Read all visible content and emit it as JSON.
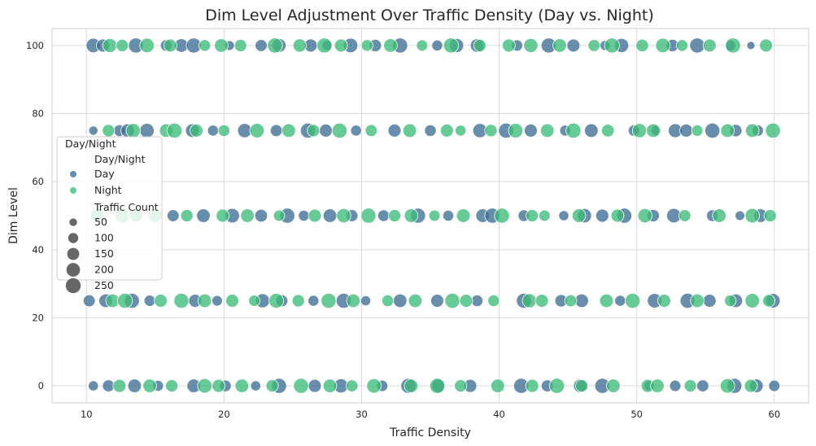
{
  "chart_data": {
    "type": "scatter",
    "title": "Dim Level Adjustment Over Traffic Density (Day vs. Night)",
    "xlabel": "Traffic Density",
    "ylabel": "Dim Level",
    "xlim": [
      7.5,
      62.5
    ],
    "ylim": [
      -5,
      105
    ],
    "xticks": [
      10,
      20,
      30,
      40,
      50,
      60
    ],
    "yticks": [
      0,
      20,
      40,
      60,
      80,
      100
    ],
    "grid": true,
    "legend_placement": "center-left",
    "hue": {
      "title": "Day/Night",
      "entries": [
        {
          "name": "Day",
          "color": "#3d6e94"
        },
        {
          "name": "Night",
          "color": "#3dbb79"
        }
      ]
    },
    "size": {
      "title": "Traffic Count",
      "entries": [
        50,
        100,
        150,
        200,
        250
      ]
    },
    "series": [
      {
        "name": "Day",
        "color": "#3d6e94",
        "points": [
          [
            10.5,
            100,
            230
          ],
          [
            11.2,
            100,
            180
          ],
          [
            13.6,
            100,
            250
          ],
          [
            15.8,
            100,
            140
          ],
          [
            16.9,
            100,
            200
          ],
          [
            17.8,
            100,
            250
          ],
          [
            20.4,
            100,
            90
          ],
          [
            22.7,
            100,
            150
          ],
          [
            24.0,
            100,
            210
          ],
          [
            26.3,
            100,
            180
          ],
          [
            27.5,
            100,
            110
          ],
          [
            29.2,
            100,
            230
          ],
          [
            31.0,
            100,
            160
          ],
          [
            32.8,
            100,
            250
          ],
          [
            35.5,
            100,
            120
          ],
          [
            36.9,
            100,
            220
          ],
          [
            38.4,
            100,
            200
          ],
          [
            41.3,
            100,
            130
          ],
          [
            43.6,
            100,
            250
          ],
          [
            45.4,
            100,
            180
          ],
          [
            47.7,
            100,
            100
          ],
          [
            48.9,
            100,
            220
          ],
          [
            52.6,
            100,
            160
          ],
          [
            54.4,
            100,
            250
          ],
          [
            56.8,
            100,
            120
          ],
          [
            58.3,
            100,
            60
          ],
          [
            10.5,
            75,
            80
          ],
          [
            12.4,
            75,
            140
          ],
          [
            13.0,
            75,
            200
          ],
          [
            14.4,
            75,
            230
          ],
          [
            17.7,
            75,
            200
          ],
          [
            19.2,
            75,
            120
          ],
          [
            21.5,
            75,
            220
          ],
          [
            23.8,
            75,
            150
          ],
          [
            26.1,
            75,
            250
          ],
          [
            27.4,
            75,
            180
          ],
          [
            29.6,
            75,
            120
          ],
          [
            32.4,
            75,
            180
          ],
          [
            35.0,
            75,
            140
          ],
          [
            38.6,
            75,
            220
          ],
          [
            40.5,
            75,
            250
          ],
          [
            42.3,
            75,
            180
          ],
          [
            44.8,
            75,
            120
          ],
          [
            46.7,
            75,
            200
          ],
          [
            49.8,
            75,
            130
          ],
          [
            51.4,
            75,
            100
          ],
          [
            52.8,
            75,
            210
          ],
          [
            53.6,
            75,
            180
          ],
          [
            55.5,
            75,
            250
          ],
          [
            57.2,
            75,
            160
          ],
          [
            58.8,
            75,
            130
          ],
          [
            16.3,
            50,
            150
          ],
          [
            18.5,
            50,
            200
          ],
          [
            20.6,
            50,
            230
          ],
          [
            22.7,
            50,
            170
          ],
          [
            24.6,
            50,
            250
          ],
          [
            25.8,
            50,
            120
          ],
          [
            27.7,
            50,
            200
          ],
          [
            29.3,
            50,
            150
          ],
          [
            31.6,
            50,
            140
          ],
          [
            34.1,
            50,
            250
          ],
          [
            36.3,
            50,
            120
          ],
          [
            38.8,
            50,
            200
          ],
          [
            39.5,
            50,
            250
          ],
          [
            41.8,
            50,
            140
          ],
          [
            44.7,
            50,
            100
          ],
          [
            46.2,
            50,
            220
          ],
          [
            47.5,
            50,
            180
          ],
          [
            49.1,
            50,
            250
          ],
          [
            51.2,
            50,
            160
          ],
          [
            52.7,
            50,
            230
          ],
          [
            55.5,
            50,
            140
          ],
          [
            57.5,
            50,
            90
          ],
          [
            59.0,
            50,
            200
          ],
          [
            10.2,
            25,
            150
          ],
          [
            11.4,
            25,
            200
          ],
          [
            13.3,
            25,
            250
          ],
          [
            14.6,
            25,
            130
          ],
          [
            17.9,
            25,
            180
          ],
          [
            19.5,
            25,
            110
          ],
          [
            22.8,
            25,
            220
          ],
          [
            24.2,
            25,
            150
          ],
          [
            26.5,
            25,
            120
          ],
          [
            28.7,
            25,
            250
          ],
          [
            30.3,
            25,
            100
          ],
          [
            32.8,
            25,
            200
          ],
          [
            35.5,
            25,
            180
          ],
          [
            38.4,
            25,
            140
          ],
          [
            41.8,
            25,
            250
          ],
          [
            44.5,
            25,
            160
          ],
          [
            46.0,
            25,
            200
          ],
          [
            48.8,
            25,
            120
          ],
          [
            51.3,
            25,
            230
          ],
          [
            53.7,
            25,
            250
          ],
          [
            55.3,
            25,
            180
          ],
          [
            57.2,
            25,
            200
          ],
          [
            59.9,
            25,
            230
          ],
          [
            10.5,
            0,
            100
          ],
          [
            11.6,
            0,
            150
          ],
          [
            13.5,
            0,
            200
          ],
          [
            15.2,
            0,
            120
          ],
          [
            17.8,
            0,
            200
          ],
          [
            20.1,
            0,
            140
          ],
          [
            22.3,
            0,
            100
          ],
          [
            24.0,
            0,
            250
          ],
          [
            26.6,
            0,
            180
          ],
          [
            28.5,
            0,
            220
          ],
          [
            31.5,
            0,
            130
          ],
          [
            33.4,
            0,
            250
          ],
          [
            35.6,
            0,
            200
          ],
          [
            37.9,
            0,
            180
          ],
          [
            41.6,
            0,
            250
          ],
          [
            43.5,
            0,
            150
          ],
          [
            45.9,
            0,
            200
          ],
          [
            47.5,
            0,
            250
          ],
          [
            50.9,
            0,
            100
          ],
          [
            52.8,
            0,
            130
          ],
          [
            54.8,
            0,
            150
          ],
          [
            57.1,
            0,
            250
          ],
          [
            58.7,
            0,
            200
          ],
          [
            60.0,
            0,
            130
          ]
        ]
      },
      {
        "name": "Night",
        "color": "#3dbb79",
        "points": [
          [
            11.7,
            100,
            220
          ],
          [
            12.6,
            100,
            160
          ],
          [
            14.4,
            100,
            230
          ],
          [
            16.1,
            100,
            180
          ],
          [
            18.6,
            100,
            140
          ],
          [
            19.8,
            100,
            200
          ],
          [
            21.2,
            100,
            160
          ],
          [
            23.7,
            100,
            250
          ],
          [
            25.5,
            100,
            190
          ],
          [
            27.3,
            100,
            250
          ],
          [
            28.5,
            100,
            180
          ],
          [
            30.4,
            100,
            140
          ],
          [
            32.1,
            100,
            200
          ],
          [
            34.4,
            100,
            130
          ],
          [
            36.5,
            100,
            250
          ],
          [
            38.6,
            100,
            160
          ],
          [
            40.7,
            100,
            180
          ],
          [
            42.3,
            100,
            220
          ],
          [
            44.4,
            100,
            200
          ],
          [
            46.9,
            100,
            150
          ],
          [
            48.2,
            100,
            250
          ],
          [
            50.4,
            100,
            170
          ],
          [
            51.9,
            100,
            230
          ],
          [
            53.3,
            100,
            140
          ],
          [
            55.3,
            100,
            180
          ],
          [
            57.0,
            100,
            250
          ],
          [
            59.4,
            100,
            180
          ],
          [
            11.6,
            75,
            160
          ],
          [
            13.4,
            75,
            220
          ],
          [
            15.8,
            75,
            200
          ],
          [
            16.4,
            75,
            250
          ],
          [
            18.0,
            75,
            180
          ],
          [
            20.0,
            75,
            140
          ],
          [
            22.4,
            75,
            230
          ],
          [
            24.7,
            75,
            200
          ],
          [
            26.5,
            75,
            160
          ],
          [
            28.4,
            75,
            250
          ],
          [
            30.7,
            75,
            150
          ],
          [
            33.5,
            75,
            200
          ],
          [
            36.2,
            75,
            180
          ],
          [
            37.2,
            75,
            120
          ],
          [
            39.4,
            75,
            160
          ],
          [
            41.2,
            75,
            230
          ],
          [
            43.5,
            75,
            200
          ],
          [
            45.4,
            75,
            250
          ],
          [
            47.9,
            75,
            170
          ],
          [
            50.2,
            75,
            220
          ],
          [
            51.2,
            75,
            200
          ],
          [
            54.4,
            75,
            130
          ],
          [
            56.6,
            75,
            200
          ],
          [
            58.4,
            75,
            200
          ],
          [
            59.9,
            75,
            250
          ],
          [
            10.8,
            50,
            200
          ],
          [
            12.6,
            50,
            240
          ],
          [
            13.6,
            50,
            180
          ],
          [
            15.0,
            50,
            200
          ],
          [
            17.3,
            50,
            160
          ],
          [
            19.9,
            50,
            180
          ],
          [
            21.7,
            50,
            200
          ],
          [
            24.0,
            50,
            130
          ],
          [
            26.6,
            50,
            180
          ],
          [
            28.7,
            50,
            220
          ],
          [
            30.5,
            50,
            250
          ],
          [
            32.4,
            50,
            160
          ],
          [
            33.6,
            50,
            200
          ],
          [
            35.3,
            50,
            130
          ],
          [
            37.4,
            50,
            200
          ],
          [
            40.2,
            50,
            250
          ],
          [
            42.4,
            50,
            160
          ],
          [
            43.3,
            50,
            130
          ],
          [
            45.8,
            50,
            200
          ],
          [
            48.6,
            50,
            180
          ],
          [
            50.6,
            50,
            220
          ],
          [
            53.5,
            50,
            150
          ],
          [
            56.0,
            50,
            200
          ],
          [
            58.4,
            50,
            230
          ],
          [
            59.7,
            50,
            160
          ],
          [
            11.9,
            25,
            200
          ],
          [
            12.8,
            25,
            250
          ],
          [
            15.4,
            25,
            180
          ],
          [
            16.9,
            25,
            250
          ],
          [
            18.6,
            25,
            200
          ],
          [
            20.6,
            25,
            180
          ],
          [
            22.2,
            25,
            130
          ],
          [
            23.8,
            25,
            240
          ],
          [
            25.4,
            25,
            160
          ],
          [
            27.6,
            25,
            250
          ],
          [
            29.4,
            25,
            200
          ],
          [
            31.9,
            25,
            140
          ],
          [
            33.9,
            25,
            200
          ],
          [
            36.6,
            25,
            250
          ],
          [
            37.6,
            25,
            180
          ],
          [
            39.6,
            25,
            140
          ],
          [
            42.2,
            25,
            220
          ],
          [
            43.1,
            25,
            180
          ],
          [
            45.2,
            25,
            150
          ],
          [
            47.8,
            25,
            200
          ],
          [
            49.7,
            25,
            250
          ],
          [
            52.0,
            25,
            180
          ],
          [
            54.4,
            25,
            200
          ],
          [
            56.8,
            25,
            140
          ],
          [
            58.4,
            25,
            230
          ],
          [
            59.6,
            25,
            160
          ],
          [
            12.4,
            0,
            180
          ],
          [
            14.6,
            0,
            200
          ],
          [
            16.2,
            0,
            160
          ],
          [
            18.6,
            0,
            230
          ],
          [
            19.6,
            0,
            180
          ],
          [
            21.3,
            0,
            200
          ],
          [
            23.5,
            0,
            160
          ],
          [
            25.6,
            0,
            250
          ],
          [
            27.7,
            0,
            200
          ],
          [
            29.3,
            0,
            150
          ],
          [
            30.9,
            0,
            230
          ],
          [
            33.6,
            0,
            200
          ],
          [
            35.5,
            0,
            250
          ],
          [
            37.2,
            0,
            160
          ],
          [
            39.9,
            0,
            200
          ],
          [
            42.4,
            0,
            180
          ],
          [
            44.2,
            0,
            250
          ],
          [
            46.0,
            0,
            160
          ],
          [
            48.3,
            0,
            200
          ],
          [
            50.8,
            0,
            180
          ],
          [
            51.5,
            0,
            200
          ],
          [
            53.9,
            0,
            160
          ],
          [
            56.6,
            0,
            230
          ],
          [
            58.3,
            0,
            180
          ]
        ]
      }
    ]
  }
}
